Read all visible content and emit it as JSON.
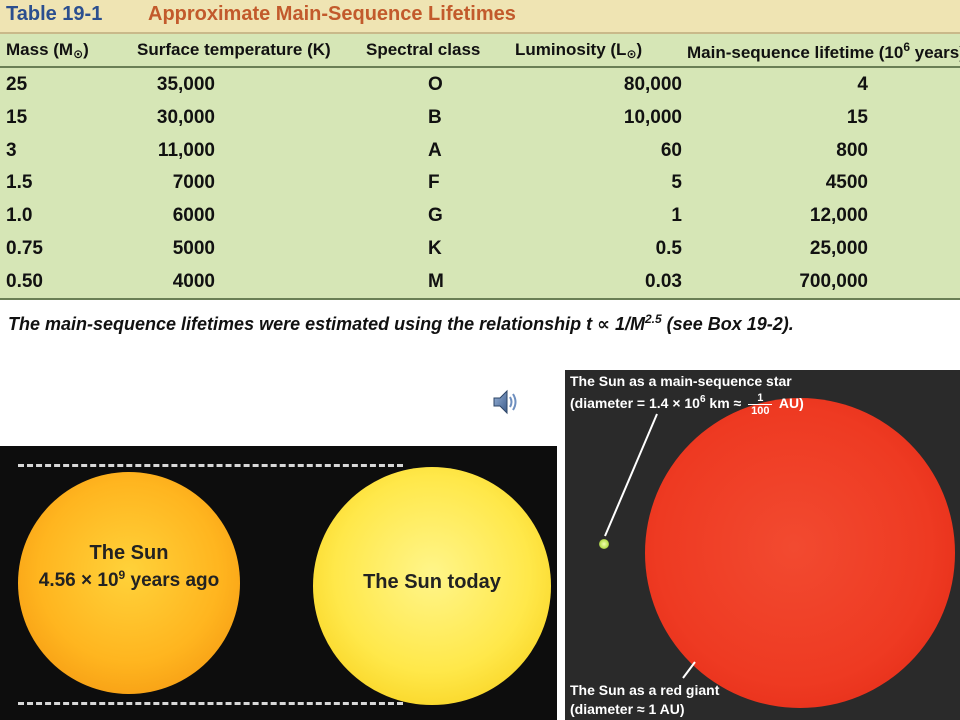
{
  "table": {
    "title_number": "Table 19-1",
    "title_text": "Approximate Main-Sequence Lifetimes",
    "headers": {
      "mass": "Mass (M",
      "mass_sub": "⊙",
      "mass_close": ")",
      "temp": "Surface temperature (K)",
      "spectral": "Spectral class",
      "luminosity": "Luminosity (L",
      "luminosity_sub": "⊙",
      "luminosity_close": ")",
      "lifetime": "Main-sequence lifetime (10",
      "lifetime_sup": "6",
      "lifetime_close": " years)"
    },
    "rows": [
      {
        "mass": "25",
        "temp": "35,000",
        "spectral": "O",
        "luminosity": "80,000",
        "lifetime": "4"
      },
      {
        "mass": "15",
        "temp": "30,000",
        "spectral": "B",
        "luminosity": "10,000",
        "lifetime": "15"
      },
      {
        "mass": "3",
        "temp": "11,000",
        "spectral": "A",
        "luminosity": "60",
        "lifetime": "800"
      },
      {
        "mass": "1.5",
        "temp": "7000",
        "spectral": "F",
        "luminosity": "5",
        "lifetime": "4500"
      },
      {
        "mass": "1.0",
        "temp": "6000",
        "spectral": "G",
        "luminosity": "1",
        "lifetime": "12,000"
      },
      {
        "mass": "0.75",
        "temp": "5000",
        "spectral": "K",
        "luminosity": "0.5",
        "lifetime": "25,000"
      },
      {
        "mass": "0.50",
        "temp": "4000",
        "spectral": "M",
        "luminosity": "0.03",
        "lifetime": "700,000"
      }
    ],
    "footnote": "The main-sequence lifetimes were estimated using the relationship t ∝ 1/M",
    "footnote_sup": "2.5",
    "footnote_end": " (see Box 19-2)."
  },
  "speaker_icon": "speaker-icon",
  "sun_comparison": {
    "past_line1": "The Sun",
    "past_line2": "4.56 × 10",
    "past_line2_sup": "9",
    "past_line2_end": " years ago",
    "today_label": "The Sun today"
  },
  "red_giant": {
    "top_line1": "The Sun as a main-sequence star",
    "top_line2_start": "(diameter = 1.4 × 10",
    "top_line2_sup": "6",
    "top_line2_mid": " km ≈ ",
    "frac_num": "1",
    "frac_den": "100",
    "top_line2_end": " AU)",
    "bottom_line1": "The Sun as a red giant",
    "bottom_line2": "(diameter ≈ 1 AU)"
  },
  "colors": {
    "table_bg": "#d6e6b6",
    "title_bg": "#efe4b3",
    "title_number": "#2b4f8f",
    "title_text": "#c25a2c",
    "red_giant": "#ee3a22",
    "sun_past": "#ffb51f",
    "sun_today": "#ffe84a"
  }
}
